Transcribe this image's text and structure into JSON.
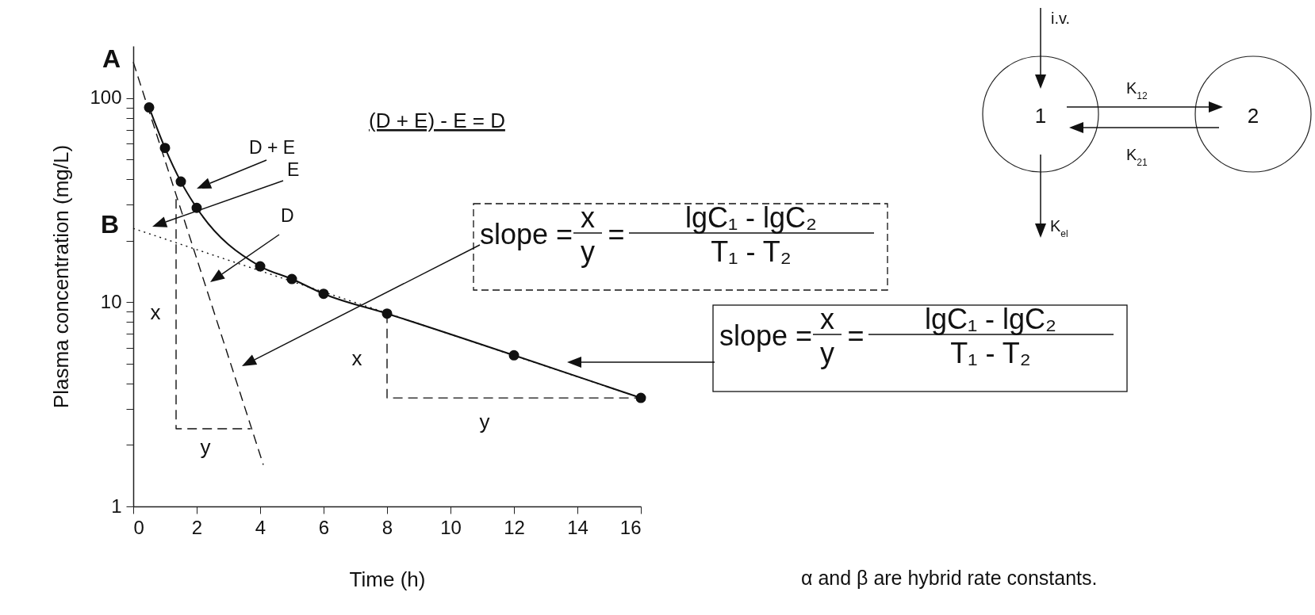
{
  "chart_data": {
    "type": "line",
    "xlabel": "Time (h)",
    "ylabel": "Plasma concentration (mg/L)",
    "log": "y",
    "xlim": [
      0,
      16
    ],
    "xticks": [
      0,
      2,
      4,
      6,
      8,
      10,
      12,
      14,
      16
    ],
    "ylim": [
      1,
      180
    ],
    "yticks": [
      1,
      {
        "value": 2,
        "label": null
      },
      {
        "value": 3,
        "label": null
      },
      {
        "value": 4,
        "label": null
      },
      {
        "value": 5,
        "label": null
      },
      {
        "value": 6,
        "label": null
      },
      {
        "value": 7,
        "label": null
      },
      {
        "value": 8,
        "label": null
      },
      {
        "value": 9,
        "label": null
      },
      10,
      {
        "value": 20,
        "label": null
      },
      {
        "value": 30,
        "label": null
      },
      {
        "value": 40,
        "label": null
      },
      {
        "value": 50,
        "label": null
      },
      {
        "value": 60,
        "label": null
      },
      {
        "value": 70,
        "label": null
      },
      {
        "value": 80,
        "label": null
      },
      {
        "value": 90,
        "label": null
      },
      100
    ],
    "series": [
      {
        "color": "#111111",
        "marker": "circle",
        "line_style": "solid",
        "x": [
          0.5,
          1,
          1.5,
          2,
          4,
          5,
          6,
          8,
          12,
          16
        ],
        "values": [
          90,
          57,
          39,
          29,
          15,
          13,
          11,
          8.8,
          5.5,
          3.4
        ]
      },
      {
        "color": "#111111",
        "marker": "none",
        "line_style": "dashed",
        "x": [
          0,
          4.1
        ],
        "values": [
          150,
          1.6
        ]
      },
      {
        "color": "#111111",
        "marker": "none",
        "line_style": "dotted",
        "x": [
          0,
          16
        ],
        "values": [
          23,
          3.4
        ]
      },
      {
        "color": "#111111",
        "marker": "none",
        "line_style": "dashed",
        "x": [
          1.35,
          1.35,
          3.7
        ],
        "values": [
          32,
          2.4,
          2.4
        ]
      },
      {
        "color": "#111111",
        "marker": "none",
        "line_style": "dashed",
        "x": [
          8,
          8,
          16
        ],
        "values": [
          8.8,
          3.4,
          3.4
        ]
      }
    ],
    "annotations": [
      "A",
      "B",
      "(D + E) - E = D",
      "x",
      "y",
      "x",
      "y",
      "D + E",
      "D",
      "E",
      "slope =",
      "x",
      "y",
      "=",
      "lgC₁ - lgC₂",
      "T₁ - T₂",
      "slope =",
      "x",
      "y",
      "=",
      "lgC₁ - lgC₂",
      "T₁ - T₂",
      "i.v.",
      "1",
      "2",
      "K$_{12}$",
      "K$_{21}$",
      "K$_{el}$",
      "α and β are hybrid rate constants."
    ]
  }
}
